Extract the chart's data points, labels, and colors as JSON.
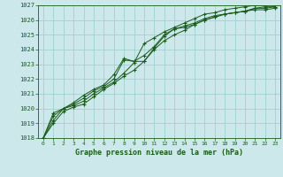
{
  "title": "Graphe pression niveau de la mer (hPa)",
  "ylim": [
    1018,
    1027
  ],
  "xlim": [
    0,
    23
  ],
  "bg_color": "#cce8ea",
  "plot_bg_color": "#cce8ea",
  "grid_color": "#99cccc",
  "line_color": "#1a5c1a",
  "label_color": "#1a5c1a",
  "series": [
    [
      1018.0,
      1019.0,
      1019.8,
      1020.1,
      1020.3,
      1020.8,
      1021.3,
      1021.7,
      1022.2,
      1022.6,
      1023.2,
      1024.0,
      1024.6,
      1025.0,
      1025.3,
      1025.7,
      1026.0,
      1026.2,
      1026.4,
      1026.5,
      1026.6,
      1026.7,
      1026.7,
      1026.8
    ],
    [
      1018.0,
      1019.2,
      1020.0,
      1020.2,
      1020.5,
      1021.0,
      1021.4,
      1021.8,
      1022.4,
      1023.1,
      1024.4,
      1024.8,
      1025.2,
      1025.5,
      1025.8,
      1026.1,
      1026.4,
      1026.5,
      1026.7,
      1026.8,
      1026.9,
      1027.0,
      1027.0,
      1027.1
    ],
    [
      1018.0,
      1019.5,
      1020.0,
      1020.3,
      1020.7,
      1021.2,
      1021.5,
      1022.0,
      1023.3,
      1023.2,
      1023.2,
      1024.1,
      1024.9,
      1025.4,
      1025.5,
      1025.7,
      1026.0,
      1026.2,
      1026.4,
      1026.5,
      1026.6,
      1026.8,
      1026.8,
      1026.9
    ],
    [
      1018.0,
      1019.7,
      1020.0,
      1020.4,
      1020.9,
      1021.3,
      1021.6,
      1022.3,
      1023.4,
      1023.2,
      1023.6,
      1024.2,
      1025.0,
      1025.4,
      1025.6,
      1025.8,
      1026.1,
      1026.3,
      1026.4,
      1026.5,
      1026.6,
      1026.8,
      1026.9,
      1026.9
    ]
  ]
}
